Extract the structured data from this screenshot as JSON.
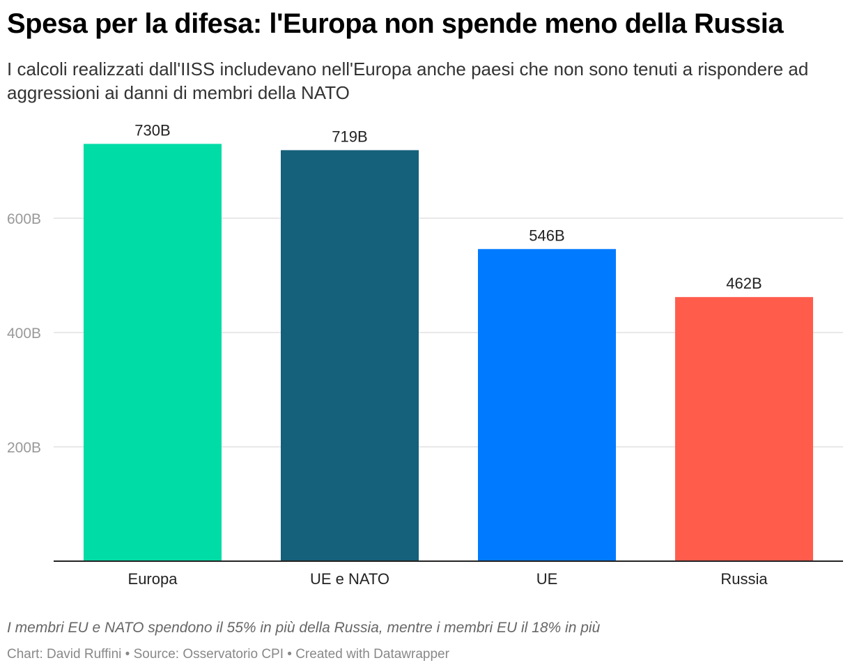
{
  "header": {
    "title": "Spesa per la difesa: l'Europa non spende meno della Russia",
    "subtitle": "I calcoli realizzati dall'IISS includevano nell'Europa anche paesi che non sono tenuti a rispondere ad aggressioni ai danni di membri della NATO"
  },
  "notes": "I membri EU e NATO spendono il 55% in più della Russia, mentre i membri EU il 18% in più",
  "footer": "Chart: David Ruffini • Source: Osservatorio CPI • Created with Datawrapper",
  "chart_data": {
    "type": "bar",
    "title": "Spesa per la difesa: l'Europa non spende meno della Russia",
    "xlabel": "",
    "ylabel": "",
    "categories": [
      "Europa",
      "UE e NATO",
      "UE",
      "Russia"
    ],
    "values": [
      730,
      719,
      546,
      462
    ],
    "value_labels": [
      "730B",
      "719B",
      "546B",
      "462B"
    ],
    "colors": [
      "#00dca6",
      "#15607a",
      "#007aff",
      "#ff5c4c"
    ],
    "unit": "B",
    "yticks": [
      200,
      400,
      600
    ],
    "ytick_labels": [
      "200B",
      "400B",
      "600B"
    ],
    "ylim": [
      0,
      740
    ],
    "grid": true,
    "legend": "none"
  }
}
